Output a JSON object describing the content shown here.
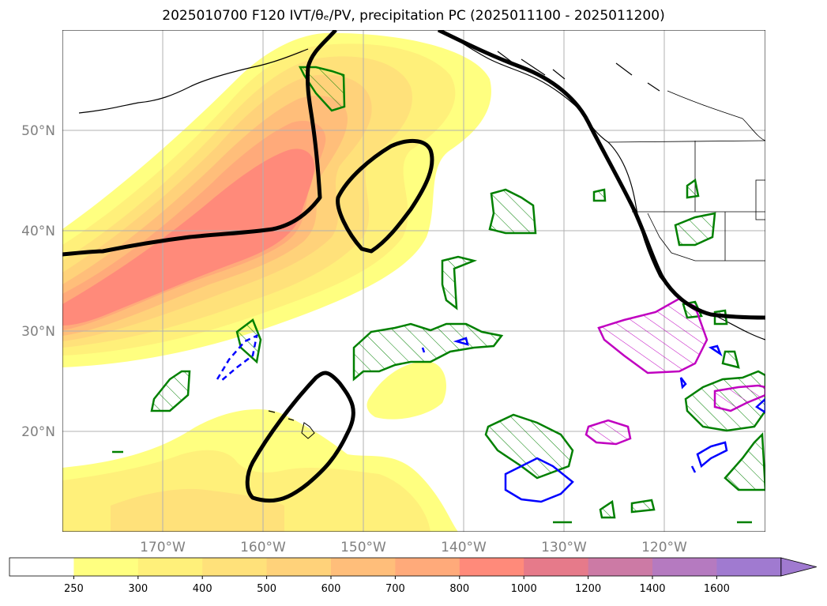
{
  "title": "2025010700 F120 IVT/θₑ/PV, precipitation PC (2025011100 - 2025011200)",
  "lat_labels": [
    "50°N",
    "40°N",
    "30°N",
    "20°N"
  ],
  "lon_labels": [
    "170°W",
    "160°W",
    "150°W",
    "140°W",
    "130°W",
    "120°W"
  ],
  "colorbar": {
    "ticks": [
      "250",
      "300",
      "400",
      "500",
      "600",
      "700",
      "800",
      "1000",
      "1200",
      "1400",
      "1600"
    ],
    "colors": [
      "#ffffff",
      "#ffff80",
      "#fff07a",
      "#ffe17a",
      "#ffd27a",
      "#ffbe7a",
      "#ffaa7a",
      "#ff8a7a",
      "#e67a8a",
      "#cc7aa5",
      "#b57ac0",
      "#a07ad0"
    ],
    "extend": "max"
  },
  "colors": {
    "contour_black": "#000000",
    "contour_green": "#008000",
    "contour_blue": "#0000ff",
    "contour_magenta": "#c000c0",
    "gridline": "#b0b0b0"
  }
}
